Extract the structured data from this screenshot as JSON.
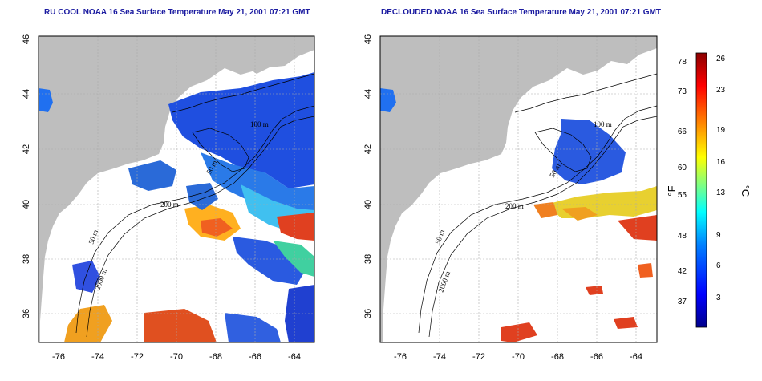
{
  "maps": [
    {
      "id": "left",
      "title": "RU COOL NOAA 16 Sea Surface Temperature May 21, 2001 07:21 GMT",
      "xticks": [
        "-76",
        "-74",
        "-72",
        "-70",
        "-68",
        "-66",
        "-64"
      ],
      "yticks": [
        "36",
        "38",
        "40",
        "42",
        "44",
        "46"
      ],
      "contour_labels": [
        "100 m",
        "50 m",
        "200 m",
        "50 m",
        "2000 m"
      ]
    },
    {
      "id": "right",
      "title": "DECLOUDED NOAA 16 Sea Surface Temperature May 21, 2001 07:21 GMT",
      "xticks": [
        "-76",
        "-74",
        "-72",
        "-70",
        "-68",
        "-66",
        "-64"
      ],
      "yticks": [
        "36",
        "38",
        "40",
        "42",
        "44",
        "46"
      ],
      "contour_labels": [
        "100 m",
        "50 m",
        "200 m",
        "50 m",
        "2000 m"
      ]
    }
  ],
  "colorbar": {
    "fahrenheit_label": "°F",
    "celsius_label": "°C",
    "fahrenheit_ticks": [
      "78",
      "73",
      "66",
      "60",
      "55",
      "48",
      "42",
      "37"
    ],
    "celsius_ticks": [
      "26",
      "23",
      "19",
      "16",
      "13",
      "9",
      "6",
      "3"
    ],
    "colors": [
      "#00008b",
      "#0000ff",
      "#0080ff",
      "#00ffff",
      "#80ff80",
      "#ffff00",
      "#ff8000",
      "#ff0000",
      "#8b0000"
    ]
  },
  "colors": {
    "land": "#bebebe",
    "ocean_nodata": "#ffffff",
    "grid": "#aaaaaa",
    "contour": "#000000"
  }
}
